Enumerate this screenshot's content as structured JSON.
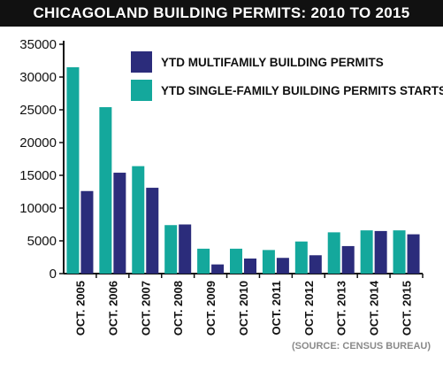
{
  "title": "CHICAGOLAND BUILDING PERMITS: 2010 TO 2015",
  "source": "(SOURCE: CENSUS BUREAU)",
  "colors": {
    "multifamily": "#2b2c7b",
    "singlefamily": "#14a89c"
  },
  "chart_data": {
    "type": "bar",
    "title": "CHICAGOLAND BUILDING PERMITS: 2010 TO 2015",
    "categories": [
      "OCT. 2005",
      "OCT. 2006",
      "OCT. 2007",
      "OCT. 2008",
      "OCT. 2009",
      "OCT. 2010",
      "OCT. 2011",
      "OCT. 2012",
      "OCT. 2013",
      "OCT. 2014",
      "OCT. 2015"
    ],
    "series": [
      {
        "name": "YTD SINGLE-FAMILY BUILDING PERMITS STARTS",
        "values": [
          31500,
          25400,
          16400,
          7400,
          3800,
          3800,
          3600,
          4900,
          6300,
          6600,
          6600
        ]
      },
      {
        "name": "YTD MULTIFAMILY BUILDING PERMITS",
        "values": [
          12600,
          15400,
          13100,
          7500,
          1400,
          2300,
          2400,
          2800,
          4200,
          6500,
          6000
        ]
      }
    ],
    "legend_order": [
      "YTD MULTIFAMILY BUILDING PERMITS",
      "YTD SINGLE-FAMILY BUILDING PERMITS STARTS"
    ],
    "ylim": [
      0,
      35000
    ],
    "yticks": [
      "35000",
      "30000",
      "25000",
      "20000",
      "15000",
      "10000",
      "5000",
      "0"
    ],
    "xlabel": "",
    "ylabel": "",
    "grid": false,
    "legend": "top-right"
  }
}
